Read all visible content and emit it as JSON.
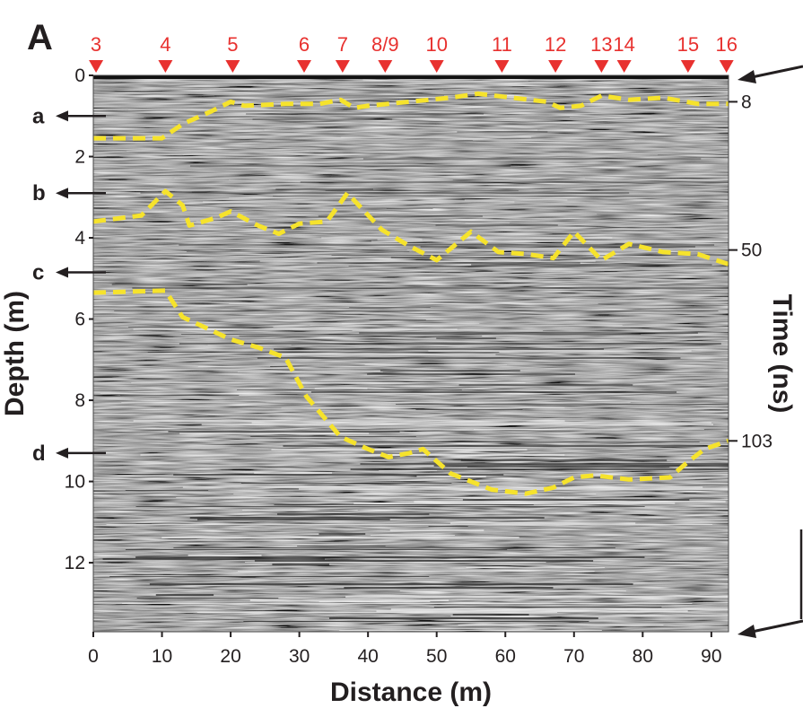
{
  "panel_letter": "A",
  "chart_data": {
    "type": "line",
    "background": "radargram",
    "xlabel": "Distance (m)",
    "ylabel": "Depth (m)",
    "y2label": "Time (ns)",
    "xlim": [
      0,
      92.5
    ],
    "ylim": [
      0,
      13.7
    ],
    "y_inverted": true,
    "xticks": [
      0,
      10,
      20,
      30,
      40,
      50,
      60,
      70,
      80,
      90
    ],
    "yticks": [
      0,
      2,
      4,
      6,
      8,
      10,
      12
    ],
    "time_ticks": [
      {
        "label": "8",
        "depth": 0.65
      },
      {
        "label": "50",
        "depth": 4.3
      },
      {
        "label": "103",
        "depth": 9.0
      }
    ],
    "markers": [
      {
        "label": "3",
        "x": 0.4
      },
      {
        "label": "4",
        "x": 10.5
      },
      {
        "label": "5",
        "x": 20.3
      },
      {
        "label": "6",
        "x": 30.7
      },
      {
        "label": "7",
        "x": 36.3
      },
      {
        "label": "8/9",
        "x": 42.5
      },
      {
        "label": "10",
        "x": 50.0
      },
      {
        "label": "11",
        "x": 59.5
      },
      {
        "label": "12",
        "x": 67.3
      },
      {
        "label": "13",
        "x": 74.0
      },
      {
        "label": "14",
        "x": 77.3
      },
      {
        "label": "15",
        "x": 86.6
      },
      {
        "label": "16",
        "x": 92.2
      }
    ],
    "layer_labels": [
      {
        "label": "a",
        "depth": 1.0
      },
      {
        "label": "b",
        "depth": 2.9
      },
      {
        "label": "c",
        "depth": 4.85
      },
      {
        "label": "d",
        "depth": 9.3
      }
    ],
    "series": [
      {
        "x": [
          0,
          10,
          13,
          17,
          20,
          22,
          28,
          33,
          36,
          38,
          40,
          46,
          52,
          56,
          61,
          66,
          68,
          71,
          74,
          78,
          83,
          88,
          92.5
        ],
        "y": [
          1.55,
          1.55,
          1.2,
          0.9,
          0.65,
          0.75,
          0.7,
          0.7,
          0.6,
          0.8,
          0.75,
          0.65,
          0.55,
          0.45,
          0.55,
          0.65,
          0.8,
          0.75,
          0.5,
          0.6,
          0.55,
          0.7,
          0.7
        ]
      },
      {
        "x": [
          0,
          7,
          10.5,
          13,
          14,
          18,
          20,
          24,
          27,
          30,
          34,
          37,
          42,
          46,
          50,
          55,
          59,
          63,
          67,
          70,
          74,
          78,
          83,
          88,
          92.5
        ],
        "y": [
          3.6,
          3.45,
          2.85,
          3.2,
          3.7,
          3.5,
          3.35,
          3.7,
          3.9,
          3.65,
          3.6,
          2.9,
          3.8,
          4.2,
          4.55,
          3.85,
          4.35,
          4.4,
          4.5,
          3.85,
          4.55,
          4.15,
          4.35,
          4.4,
          4.65
        ]
      },
      {
        "x": [
          0,
          10.5,
          13,
          20,
          24,
          28,
          31,
          36,
          40,
          43,
          46,
          48,
          52,
          58,
          63,
          67,
          70,
          73,
          78,
          84,
          86,
          89,
          92.5
        ],
        "y": [
          5.35,
          5.3,
          5.95,
          6.5,
          6.7,
          6.95,
          7.9,
          8.9,
          9.2,
          9.4,
          9.3,
          9.2,
          9.8,
          10.2,
          10.3,
          10.15,
          9.9,
          9.85,
          9.95,
          9.9,
          9.6,
          9.2,
          9.0
        ]
      }
    ]
  }
}
